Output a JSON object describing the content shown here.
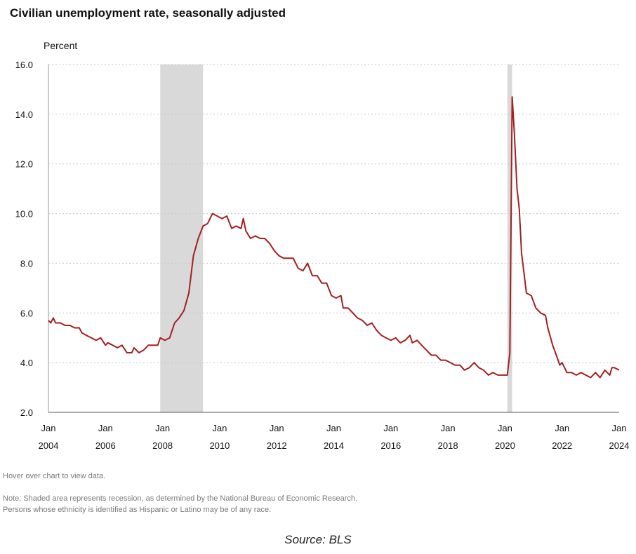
{
  "chart_data": {
    "type": "line",
    "title": "Civilian unemployment rate, seasonally adjusted",
    "ylabel": "Percent",
    "ylim": [
      2.0,
      16.0
    ],
    "yticks": [
      "2.0",
      "4.0",
      "6.0",
      "8.0",
      "10.0",
      "12.0",
      "14.0",
      "16.0"
    ],
    "xlim": [
      2004.0,
      2024.0
    ],
    "xticks": [
      {
        "year": 2004,
        "top": "Jan",
        "bottom": "2004"
      },
      {
        "year": 2006,
        "top": "Jan",
        "bottom": "2006"
      },
      {
        "year": 2008,
        "top": "Jan",
        "bottom": "2008"
      },
      {
        "year": 2010,
        "top": "Jan",
        "bottom": "2010"
      },
      {
        "year": 2012,
        "top": "Jan",
        "bottom": "2012"
      },
      {
        "year": 2014,
        "top": "Jan",
        "bottom": "2014"
      },
      {
        "year": 2016,
        "top": "Jan",
        "bottom": "2016"
      },
      {
        "year": 2018,
        "top": "Jan",
        "bottom": "2018"
      },
      {
        "year": 2020,
        "top": "Jan",
        "bottom": "2020"
      },
      {
        "year": 2022,
        "top": "Jan",
        "bottom": "2022"
      },
      {
        "year": 2024,
        "top": "Jan",
        "bottom": "2024"
      }
    ],
    "grid": true,
    "recessions": [
      {
        "start": 2007.917,
        "end": 2009.417
      },
      {
        "start": 2020.083,
        "end": 2020.25
      }
    ],
    "series": [
      {
        "color": "#a32020",
        "points": [
          [
            2004.0,
            5.7
          ],
          [
            2004.08,
            5.6
          ],
          [
            2004.17,
            5.8
          ],
          [
            2004.25,
            5.6
          ],
          [
            2004.42,
            5.6
          ],
          [
            2004.58,
            5.5
          ],
          [
            2004.75,
            5.5
          ],
          [
            2004.92,
            5.4
          ],
          [
            2005.08,
            5.4
          ],
          [
            2005.17,
            5.2
          ],
          [
            2005.33,
            5.1
          ],
          [
            2005.5,
            5.0
          ],
          [
            2005.67,
            4.9
          ],
          [
            2005.83,
            5.0
          ],
          [
            2006.0,
            4.7
          ],
          [
            2006.08,
            4.8
          ],
          [
            2006.25,
            4.7
          ],
          [
            2006.42,
            4.6
          ],
          [
            2006.58,
            4.7
          ],
          [
            2006.75,
            4.4
          ],
          [
            2006.92,
            4.4
          ],
          [
            2007.0,
            4.6
          ],
          [
            2007.17,
            4.4
          ],
          [
            2007.33,
            4.5
          ],
          [
            2007.5,
            4.7
          ],
          [
            2007.67,
            4.7
          ],
          [
            2007.83,
            4.7
          ],
          [
            2007.92,
            5.0
          ],
          [
            2008.08,
            4.9
          ],
          [
            2008.25,
            5.0
          ],
          [
            2008.42,
            5.6
          ],
          [
            2008.58,
            5.8
          ],
          [
            2008.75,
            6.1
          ],
          [
            2008.92,
            6.8
          ],
          [
            2009.08,
            8.3
          ],
          [
            2009.25,
            9.0
          ],
          [
            2009.42,
            9.5
          ],
          [
            2009.58,
            9.6
          ],
          [
            2009.75,
            10.0
          ],
          [
            2009.92,
            9.9
          ],
          [
            2010.08,
            9.8
          ],
          [
            2010.25,
            9.9
          ],
          [
            2010.42,
            9.4
          ],
          [
            2010.58,
            9.5
          ],
          [
            2010.75,
            9.4
          ],
          [
            2010.83,
            9.8
          ],
          [
            2010.92,
            9.3
          ],
          [
            2011.08,
            9.0
          ],
          [
            2011.25,
            9.1
          ],
          [
            2011.42,
            9.0
          ],
          [
            2011.58,
            9.0
          ],
          [
            2011.75,
            8.8
          ],
          [
            2011.92,
            8.5
          ],
          [
            2012.08,
            8.3
          ],
          [
            2012.25,
            8.2
          ],
          [
            2012.58,
            8.2
          ],
          [
            2012.75,
            7.8
          ],
          [
            2012.92,
            7.7
          ],
          [
            2013.08,
            8.0
          ],
          [
            2013.25,
            7.5
          ],
          [
            2013.42,
            7.5
          ],
          [
            2013.58,
            7.2
          ],
          [
            2013.75,
            7.2
          ],
          [
            2013.92,
            6.7
          ],
          [
            2014.08,
            6.6
          ],
          [
            2014.25,
            6.7
          ],
          [
            2014.33,
            6.2
          ],
          [
            2014.5,
            6.2
          ],
          [
            2014.67,
            6.0
          ],
          [
            2014.83,
            5.8
          ],
          [
            2015.0,
            5.7
          ],
          [
            2015.17,
            5.5
          ],
          [
            2015.33,
            5.6
          ],
          [
            2015.5,
            5.3
          ],
          [
            2015.67,
            5.1
          ],
          [
            2015.83,
            5.0
          ],
          [
            2016.0,
            4.9
          ],
          [
            2016.17,
            5.0
          ],
          [
            2016.33,
            4.8
          ],
          [
            2016.5,
            4.9
          ],
          [
            2016.67,
            5.1
          ],
          [
            2016.75,
            4.8
          ],
          [
            2016.92,
            4.9
          ],
          [
            2017.08,
            4.7
          ],
          [
            2017.25,
            4.5
          ],
          [
            2017.42,
            4.3
          ],
          [
            2017.58,
            4.3
          ],
          [
            2017.75,
            4.1
          ],
          [
            2017.92,
            4.1
          ],
          [
            2018.08,
            4.0
          ],
          [
            2018.25,
            3.9
          ],
          [
            2018.42,
            3.9
          ],
          [
            2018.58,
            3.7
          ],
          [
            2018.75,
            3.8
          ],
          [
            2018.92,
            4.0
          ],
          [
            2019.08,
            3.8
          ],
          [
            2019.25,
            3.7
          ],
          [
            2019.42,
            3.5
          ],
          [
            2019.58,
            3.6
          ],
          [
            2019.75,
            3.5
          ],
          [
            2019.92,
            3.5
          ],
          [
            2020.08,
            3.5
          ],
          [
            2020.17,
            4.4
          ],
          [
            2020.25,
            14.7
          ],
          [
            2020.33,
            13.2
          ],
          [
            2020.42,
            11.0
          ],
          [
            2020.5,
            10.2
          ],
          [
            2020.58,
            8.4
          ],
          [
            2020.75,
            6.8
          ],
          [
            2020.92,
            6.7
          ],
          [
            2021.08,
            6.2
          ],
          [
            2021.25,
            6.0
          ],
          [
            2021.42,
            5.9
          ],
          [
            2021.5,
            5.4
          ],
          [
            2021.67,
            4.7
          ],
          [
            2021.83,
            4.2
          ],
          [
            2021.92,
            3.9
          ],
          [
            2022.0,
            4.0
          ],
          [
            2022.17,
            3.6
          ],
          [
            2022.33,
            3.6
          ],
          [
            2022.5,
            3.5
          ],
          [
            2022.67,
            3.6
          ],
          [
            2022.83,
            3.5
          ],
          [
            2023.0,
            3.4
          ],
          [
            2023.17,
            3.6
          ],
          [
            2023.33,
            3.4
          ],
          [
            2023.5,
            3.7
          ],
          [
            2023.67,
            3.5
          ],
          [
            2023.75,
            3.8
          ],
          [
            2023.83,
            3.8
          ],
          [
            2024.0,
            3.7
          ]
        ]
      }
    ]
  },
  "notes": {
    "hover": "Hover over chart to view data.",
    "note_line1": "Note: Shaded area represents recession, as determined by the National Bureau of Economic Research.",
    "note_line2": "Persons whose ethnicity is identified as Hispanic or Latino may be of any race.",
    "source": "Source: BLS"
  }
}
